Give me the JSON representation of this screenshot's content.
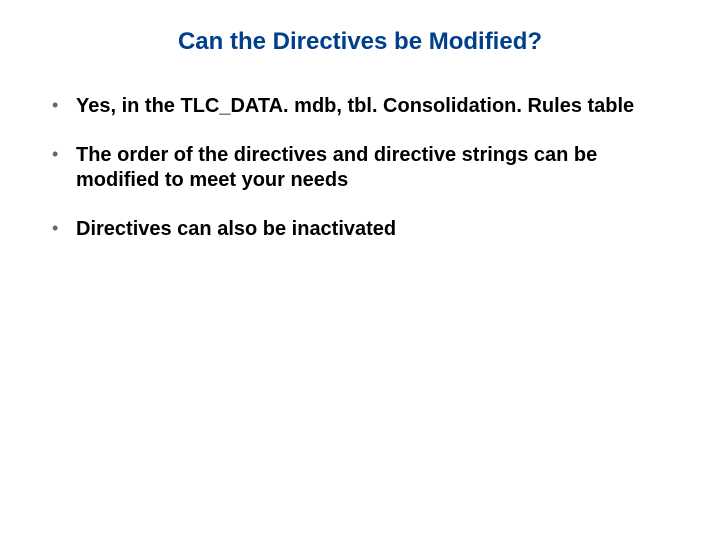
{
  "title": "Can the Directives be Modified?",
  "title_color": "#003f8c",
  "title_fontsize": 24,
  "bullet_color": "#666666",
  "text_color": "#000000",
  "text_fontsize": 20,
  "background_color": "#ffffff",
  "bullets": [
    "Yes, in the TLC_DATA. mdb, tbl. Consolidation. Rules table",
    "The order of the directives and directive strings can be modified to meet your needs",
    "Directives can also be inactivated"
  ]
}
